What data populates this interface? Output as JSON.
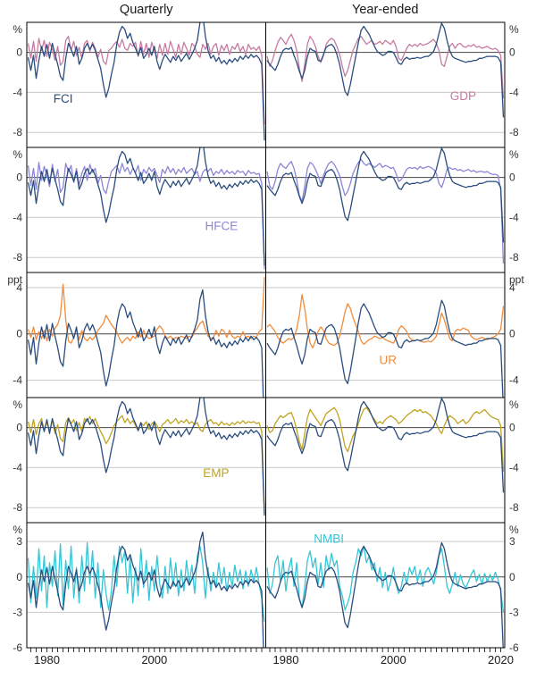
{
  "header": {
    "left_column_title": "Quarterly",
    "right_column_title": "Year-ended"
  },
  "chart_data": {
    "type": "line",
    "columns": [
      {
        "key": "quarterly",
        "title": "Quarterly"
      },
      {
        "key": "year_ended",
        "title": "Year-ended"
      }
    ],
    "x": {
      "start": 1976.5,
      "step": 0.5,
      "count": 89
    },
    "x_domain": [
      1976.25,
      2020.75
    ],
    "x_minor_tick_step_years": 1,
    "x_tick_labels": [
      {
        "column": 0,
        "year": 1980,
        "label": "1980"
      },
      {
        "column": 0,
        "year": 2000,
        "label": "2000"
      },
      {
        "column": 1,
        "year": 1980,
        "label": "1980"
      },
      {
        "column": 1,
        "year": 2000,
        "label": "2000"
      },
      {
        "column": 1,
        "year": 2020,
        "label": "2020"
      }
    ],
    "colors": {
      "grid": "#c9c9c9",
      "zero_line": "#444444",
      "panel_border": "#000000",
      "axis_text": "#333333"
    },
    "fci": {
      "name": "FCI",
      "color": "#2a4d7f",
      "label": {
        "row": 0,
        "column": "quarterly",
        "year": 1983,
        "value": -4.7
      },
      "quarterly": [
        -0.5,
        -1.8,
        -0.3,
        -2.6,
        -0.8,
        0.6,
        -0.4,
        0.8,
        -0.6,
        0.9,
        -0.2,
        -1.2,
        -2.4,
        -2.8,
        -0.6,
        0.9,
        0.3,
        -0.4,
        0.6,
        -1.2,
        -0.6,
        0.4,
        0.9,
        0.3,
        0.8,
        0.2,
        -0.7,
        -1.6,
        -3.2,
        -4.5,
        -3.6,
        -2.2,
        -1.0,
        0.8,
        2.0,
        2.6,
        2.3,
        1.4,
        1.9,
        1.0,
        0.4,
        -0.3,
        0.5,
        -0.6,
        -0.2,
        0.4,
        -0.3,
        0.6,
        -0.9,
        -1.7,
        -0.8,
        -0.2,
        -0.6,
        -1.0,
        -0.4,
        -0.8,
        -0.3,
        -0.9,
        -0.5,
        -0.1,
        -0.7,
        -0.2,
        0.4,
        1.2,
        3.0,
        3.8,
        1.6,
        0.2,
        -0.6,
        -0.3,
        -0.9,
        -0.5,
        -1.1,
        -0.8,
        -1.2,
        -0.7,
        -1.0,
        -0.6,
        -0.9,
        -0.4,
        -0.7,
        -0.3,
        -0.6,
        -0.2,
        -0.5,
        -0.3,
        -0.6,
        -1.2,
        -8.8
      ],
      "year_ended": [
        -0.8,
        -1.2,
        -1.5,
        -1.8,
        -1.2,
        -0.4,
        0.2,
        0.4,
        0.3,
        0.5,
        -0.3,
        -1.0,
        -1.9,
        -2.6,
        -1.8,
        -0.4,
        0.4,
        0.2,
        0.1,
        -0.8,
        -0.9,
        -0.2,
        0.5,
        0.7,
        0.8,
        0.5,
        -0.2,
        -1.2,
        -2.6,
        -3.9,
        -4.3,
        -3.2,
        -1.8,
        -0.4,
        1.0,
        2.2,
        2.6,
        2.2,
        1.8,
        1.2,
        0.6,
        0.1,
        -0.1,
        -0.3,
        -0.2,
        0.1,
        0.1,
        0.0,
        -0.5,
        -1.1,
        -1.2,
        -0.7,
        -0.5,
        -0.7,
        -0.6,
        -0.6,
        -0.5,
        -0.6,
        -0.5,
        -0.4,
        -0.4,
        -0.2,
        0.1,
        0.8,
        1.9,
        2.9,
        2.4,
        1.2,
        0.2,
        -0.4,
        -0.6,
        -0.7,
        -0.8,
        -0.9,
        -1.0,
        -0.9,
        -0.9,
        -0.8,
        -0.8,
        -0.6,
        -0.6,
        -0.5,
        -0.4,
        -0.4,
        -0.4,
        -0.4,
        -0.5,
        -1.0,
        -6.5
      ]
    },
    "rows": [
      {
        "name": "GDP",
        "color": "#c77ba2",
        "unit": "%",
        "ylim": [
          -9.5,
          3.0
        ],
        "gridlines": [
          0,
          -4,
          -8
        ],
        "label": {
          "column": "year_ended",
          "year": 2013,
          "value": -4.4
        },
        "quarterly": [
          0.9,
          -0.6,
          1.1,
          -0.9,
          1.4,
          0.2,
          1.2,
          -0.4,
          1.0,
          0.3,
          -0.8,
          0.6,
          -1.3,
          -0.9,
          1.2,
          1.6,
          0.2,
          1.1,
          -0.3,
          0.5,
          -0.6,
          0.9,
          1.2,
          0.1,
          1.0,
          0.4,
          -0.5,
          0.3,
          -0.9,
          -1.2,
          0.2,
          0.4,
          0.8,
          1.1,
          0.5,
          1.3,
          0.4,
          0.2,
          0.9,
          0.6,
          1.0,
          -0.4,
          1.1,
          -0.2,
          0.9,
          -0.5,
          1.0,
          0.2,
          -0.6,
          0.8,
          -0.3,
          0.9,
          -0.2,
          1.1,
          0.3,
          -0.5,
          0.8,
          -0.2,
          1.0,
          0.4,
          -0.3,
          0.9,
          0.6,
          -0.2,
          -0.5,
          0.8,
          0.3,
          0.9,
          -0.2,
          0.6,
          0.9,
          -0.3,
          0.7,
          0.2,
          0.8,
          -0.2,
          0.6,
          0.3,
          0.9,
          0.1,
          0.6,
          -0.2,
          0.8,
          0.3,
          0.5,
          0.2,
          0.6,
          -0.3,
          -7.2
        ],
        "year_ended": [
          -0.4,
          -1.4,
          -0.8,
          0.2,
          1.0,
          1.5,
          1.2,
          0.8,
          1.4,
          1.8,
          1.2,
          0.2,
          -1.6,
          -2.9,
          -1.2,
          0.8,
          1.6,
          1.2,
          0.6,
          -0.4,
          -1.0,
          -0.3,
          0.8,
          1.2,
          1.4,
          1.2,
          0.6,
          -0.2,
          -1.4,
          -2.4,
          -1.8,
          -0.8,
          0.2,
          0.8,
          1.4,
          1.6,
          1.2,
          0.8,
          1.0,
          1.2,
          0.8,
          0.9,
          1.1,
          0.8,
          1.2,
          1.0,
          0.8,
          1.2,
          0.6,
          -0.6,
          -0.8,
          -0.2,
          0.4,
          0.8,
          0.6,
          0.8,
          0.6,
          0.9,
          0.7,
          0.8,
          0.9,
          1.1,
          1.3,
          0.9,
          0.2,
          -1.2,
          -1.4,
          -0.4,
          0.6,
          0.9,
          0.4,
          0.8,
          0.9,
          0.6,
          0.5,
          0.7,
          0.6,
          0.8,
          0.5,
          0.6,
          0.4,
          0.5,
          0.6,
          0.4,
          0.3,
          0.4,
          0.2,
          -0.3,
          -4.6
        ]
      },
      {
        "name": "HFCE",
        "color": "#8d85d6",
        "unit": "%",
        "ylim": [
          -9.5,
          3.0
        ],
        "gridlines": [
          0,
          -4,
          -8
        ],
        "label": {
          "column": "quarterly",
          "year": 2012.5,
          "value": -4.9
        },
        "quarterly": [
          1.2,
          -0.8,
          0.9,
          -1.2,
          1.5,
          -0.3,
          1.1,
          0.2,
          -0.9,
          1.3,
          -0.4,
          0.8,
          -1.5,
          -1.0,
          1.4,
          0.6,
          1.2,
          -0.5,
          0.9,
          -0.8,
          0.4,
          1.1,
          -0.3,
          1.3,
          0.5,
          0.9,
          -0.6,
          0.2,
          -1.2,
          -1.6,
          -0.4,
          0.6,
          0.9,
          1.2,
          0.4,
          1.4,
          0.6,
          1.0,
          0.3,
          0.9,
          0.5,
          1.2,
          -0.3,
          0.8,
          0.4,
          1.0,
          0.6,
          0.9,
          0.2,
          -0.5,
          0.8,
          0.4,
          1.1,
          0.5,
          0.9,
          0.3,
          0.8,
          0.5,
          1.0,
          0.4,
          0.7,
          0.9,
          0.3,
          0.6,
          -0.4,
          0.5,
          0.8,
          0.6,
          0.9,
          0.2,
          0.6,
          0.4,
          0.8,
          0.3,
          0.7,
          0.4,
          0.6,
          0.3,
          0.7,
          0.5,
          0.6,
          0.2,
          0.7,
          0.4,
          0.5,
          0.3,
          0.4,
          -0.6,
          -9.2
        ],
        "year_ended": [
          0.6,
          -0.9,
          -1.2,
          -0.4,
          0.8,
          1.4,
          1.1,
          0.9,
          1.3,
          1.6,
          0.9,
          -0.2,
          -1.8,
          -2.4,
          -0.9,
          0.9,
          1.5,
          1.3,
          0.8,
          0.2,
          -0.6,
          0.2,
          0.9,
          1.4,
          1.6,
          1.3,
          0.8,
          0.2,
          -0.9,
          -1.8,
          -1.4,
          -0.6,
          0.4,
          1.0,
          1.5,
          1.8,
          1.4,
          1.2,
          1.4,
          1.2,
          1.0,
          1.2,
          1.4,
          1.0,
          1.2,
          1.1,
          0.9,
          1.0,
          0.4,
          -0.4,
          -0.2,
          0.3,
          0.8,
          1.0,
          0.9,
          1.0,
          0.8,
          1.1,
          0.9,
          1.0,
          1.1,
          1.0,
          0.8,
          0.4,
          -0.6,
          -1.0,
          -0.2,
          0.8,
          1.0,
          0.8,
          0.9,
          0.7,
          0.8,
          0.6,
          0.7,
          0.8,
          0.6,
          0.7,
          0.5,
          0.6,
          0.6,
          0.5,
          0.6,
          0.4,
          0.3,
          0.3,
          0.2,
          -1.2,
          -8.6
        ]
      },
      {
        "name": "UR",
        "color": "#f28c3c",
        "unit": "ppt",
        "ylim": [
          -5.5,
          5.3
        ],
        "gridlines": [
          4,
          0,
          -4
        ],
        "label": {
          "column": "year_ended",
          "year": 1999,
          "value": -2.3
        },
        "quarterly": [
          0.4,
          -0.3,
          0.6,
          -0.5,
          0.2,
          -0.4,
          0.3,
          -0.6,
          0.4,
          -0.2,
          0.5,
          0.8,
          1.6,
          4.3,
          1.2,
          -0.6,
          -0.8,
          -0.3,
          0.4,
          -0.5,
          0.3,
          -0.4,
          -0.6,
          -0.3,
          -0.5,
          -0.2,
          0.3,
          0.6,
          0.9,
          1.6,
          1.2,
          0.8,
          0.5,
          0.2,
          -0.4,
          -0.8,
          -0.5,
          -0.3,
          -0.6,
          -0.2,
          -0.4,
          0.2,
          -0.3,
          0.3,
          -0.2,
          -0.4,
          -0.3,
          -0.2,
          0.4,
          0.7,
          0.4,
          -0.2,
          -0.4,
          -0.2,
          -0.5,
          -0.3,
          -0.4,
          -0.2,
          -0.3,
          -0.4,
          -0.2,
          -0.3,
          0.2,
          0.5,
          0.9,
          1.1,
          0.4,
          -0.2,
          -0.4,
          -0.3,
          0.3,
          -0.2,
          0.4,
          0.2,
          -0.3,
          0.3,
          -0.2,
          -0.4,
          -0.2,
          -0.3,
          0.2,
          -0.3,
          -0.2,
          -0.4,
          -0.2,
          -0.3,
          0.2,
          0.4,
          4.9
        ],
        "year_ended": [
          0.6,
          0.8,
          0.5,
          0.2,
          -0.3,
          -0.6,
          -0.8,
          -0.6,
          -0.4,
          -0.5,
          -0.3,
          0.4,
          1.6,
          3.4,
          2.2,
          0.4,
          -0.8,
          -1.2,
          -0.6,
          0.2,
          0.6,
          0.3,
          -0.4,
          -0.8,
          -0.9,
          -1.0,
          -0.8,
          -0.2,
          0.8,
          1.9,
          2.6,
          2.2,
          1.4,
          0.8,
          0.2,
          -0.6,
          -0.9,
          -0.7,
          -0.5,
          -0.4,
          -0.2,
          -0.3,
          -0.4,
          -0.3,
          -0.5,
          -0.6,
          -0.7,
          -0.8,
          -0.4,
          0.4,
          0.7,
          0.5,
          0.2,
          -0.3,
          -0.5,
          -0.6,
          -0.5,
          -0.6,
          -0.7,
          -0.7,
          -0.6,
          -0.7,
          -0.5,
          -0.2,
          0.8,
          1.8,
          1.2,
          0.4,
          -0.4,
          -0.6,
          0.2,
          0.4,
          0.3,
          0.5,
          0.4,
          0.3,
          -0.2,
          -0.4,
          -0.5,
          -0.4,
          -0.3,
          -0.4,
          -0.5,
          -0.4,
          -0.3,
          -0.2,
          0.0,
          0.4,
          2.4
        ]
      },
      {
        "name": "EMP",
        "color": "#bfa41f",
        "unit": "%",
        "ylim": [
          -9.5,
          3.0
        ],
        "gridlines": [
          0,
          -4,
          -8
        ],
        "label": {
          "column": "quarterly",
          "year": 2011.5,
          "value": -4.6
        },
        "quarterly": [
          0.6,
          -0.5,
          0.8,
          -0.7,
          0.4,
          0.9,
          -0.3,
          0.6,
          -0.4,
          0.8,
          -0.6,
          0.3,
          -1.1,
          -1.4,
          0.5,
          1.0,
          0.4,
          0.8,
          -0.3,
          0.5,
          -0.4,
          0.9,
          0.6,
          1.1,
          0.4,
          0.9,
          0.2,
          -0.4,
          -0.9,
          -1.6,
          -1.2,
          -0.5,
          0.2,
          0.6,
          0.9,
          1.2,
          0.5,
          0.9,
          0.4,
          0.7,
          0.2,
          -0.3,
          0.5,
          0.2,
          0.6,
          -0.2,
          0.4,
          0.6,
          0.2,
          -0.4,
          0.3,
          0.5,
          0.8,
          0.4,
          0.6,
          0.9,
          0.4,
          0.7,
          0.5,
          0.8,
          0.4,
          0.6,
          0.3,
          0.5,
          -0.2,
          -0.4,
          0.3,
          0.6,
          0.8,
          0.4,
          0.5,
          0.2,
          0.6,
          0.3,
          0.4,
          0.2,
          0.5,
          0.3,
          0.6,
          0.4,
          0.7,
          0.4,
          0.6,
          0.5,
          0.6,
          0.4,
          0.5,
          -0.4,
          -8.6
        ],
        "year_ended": [
          0.2,
          -0.5,
          -0.3,
          0.4,
          0.8,
          1.2,
          1.0,
          1.2,
          1.4,
          1.5,
          0.8,
          -0.2,
          -1.4,
          -2.2,
          -0.6,
          1.0,
          1.8,
          1.4,
          1.0,
          0.6,
          0.2,
          0.8,
          1.4,
          1.6,
          1.8,
          2.0,
          1.6,
          0.8,
          -0.6,
          -1.9,
          -2.4,
          -1.6,
          -0.8,
          -0.4,
          0.4,
          1.2,
          1.8,
          2.0,
          1.6,
          1.2,
          0.8,
          0.4,
          0.6,
          0.4,
          0.8,
          1.0,
          1.2,
          1.0,
          0.8,
          0.4,
          0.6,
          0.9,
          1.2,
          1.4,
          1.6,
          1.8,
          1.6,
          1.8,
          1.5,
          1.6,
          1.4,
          1.2,
          0.8,
          0.4,
          -0.2,
          -0.6,
          0.2,
          0.8,
          1.2,
          1.0,
          0.8,
          0.4,
          0.6,
          0.8,
          0.4,
          0.6,
          1.0,
          1.4,
          1.6,
          1.4,
          1.6,
          1.8,
          1.5,
          1.2,
          1.0,
          0.9,
          0.8,
          0.2,
          -4.4
        ]
      },
      {
        "name": "NMBI",
        "color": "#33c6d6",
        "unit": "%",
        "ylim": [
          -6.0,
          4.6
        ],
        "gridlines": [
          3,
          0,
          -3,
          -6
        ],
        "label": {
          "column": "year_ended",
          "year": 1988,
          "value": 3.2
        },
        "quarterly": [
          1.6,
          -2.2,
          0.9,
          -1.8,
          2.4,
          -1.2,
          1.8,
          -2.6,
          1.2,
          -0.8,
          2.2,
          -1.6,
          2.8,
          -2.4,
          1.4,
          -1.0,
          2.6,
          -1.8,
          0.8,
          -2.2,
          1.8,
          -1.2,
          2.9,
          -0.6,
          2.2,
          -1.8,
          1.2,
          -2.6,
          0.6,
          -1.4,
          -2.8,
          -1.2,
          1.8,
          -0.8,
          2.6,
          1.2,
          2.2,
          -1.4,
          1.6,
          -2.2,
          0.8,
          -1.6,
          2.4,
          -0.9,
          1.4,
          -2.0,
          0.9,
          -1.2,
          1.8,
          -0.6,
          -1.8,
          0.9,
          -1.4,
          1.6,
          -0.8,
          1.2,
          -1.6,
          0.6,
          -1.2,
          1.4,
          -0.6,
          1.0,
          -1.4,
          1.8,
          2.6,
          1.2,
          -1.8,
          0.8,
          -1.2,
          0.4,
          -0.9,
          1.2,
          -0.6,
          0.8,
          -1.2,
          0.4,
          -0.8,
          1.0,
          -0.4,
          0.6,
          -1.0,
          0.5,
          -0.8,
          0.6,
          -0.4,
          0.8,
          -0.6,
          -1.8,
          -3.8
        ],
        "year_ended": [
          0.8,
          -1.4,
          -0.6,
          1.2,
          1.8,
          -0.4,
          1.4,
          -1.2,
          0.6,
          1.6,
          -0.8,
          1.2,
          -1.8,
          -2.6,
          -0.9,
          1.4,
          2.2,
          0.8,
          1.6,
          -0.6,
          1.2,
          -0.9,
          1.8,
          0.6,
          2.0,
          0.9,
          1.4,
          -0.8,
          -1.6,
          -2.8,
          -2.2,
          -1.4,
          0.4,
          1.2,
          2.4,
          1.8,
          2.6,
          1.2,
          1.8,
          0.6,
          1.2,
          -0.4,
          0.8,
          -0.9,
          0.4,
          -1.2,
          -0.4,
          0.8,
          -0.6,
          -1.4,
          -0.8,
          0.4,
          -0.6,
          0.8,
          0.2,
          0.9,
          -0.4,
          0.6,
          -0.8,
          0.4,
          0.8,
          0.2,
          -0.6,
          0.4,
          1.8,
          2.4,
          0.9,
          -0.8,
          -1.4,
          -0.6,
          0.4,
          -0.8,
          0.2,
          -0.6,
          -0.9,
          -0.4,
          0.2,
          0.6,
          -0.4,
          0.2,
          -0.6,
          0.3,
          -0.4,
          0.2,
          -0.3,
          0.4,
          -0.2,
          -1.2,
          -3.0
        ]
      }
    ]
  }
}
